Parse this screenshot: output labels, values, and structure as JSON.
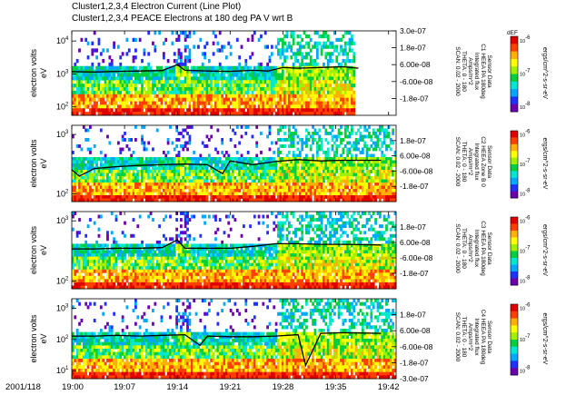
{
  "titles": {
    "line1": "Cluster1,2,3,4 Electron Current (Line Plot)",
    "line2": "Cluster1,2,3,4 PEACE Electrons at 180 deg PA V wrt B"
  },
  "time_axis": {
    "date_label": "2001/118",
    "ticks": [
      "19:00",
      "19:07",
      "19:14",
      "19:21",
      "19:28",
      "19:35",
      "19:42"
    ]
  },
  "panels": [
    {
      "ylabel": [
        "electron volts",
        "eV"
      ],
      "yticks_left": [
        {
          "v": "10",
          "e": "4"
        },
        {
          "v": "10",
          "e": "3"
        },
        {
          "v": "10",
          "e": "2"
        }
      ],
      "yticks_right": [
        "3.0e-07",
        "1.8e-07",
        "6.00e-08",
        "-6.00e-08",
        "-1.8e-07"
      ],
      "sensor_lines": [
        "Sensor Data",
        "C1 HEEA PA 180deg",
        "Integrated flux",
        "Amps/m^2",
        "THETA: 0 - 180",
        "SCAN: 0.02 - 2000"
      ],
      "colorbar_top": "dEF",
      "colorbar_ticks": [
        {
          "v": "10",
          "e": "-6"
        },
        {
          "v": "10",
          "e": "-7"
        },
        {
          "v": "10",
          "e": "-8"
        }
      ],
      "colorbar_unit": "ergs/cm^2-s-sr-eV"
    },
    {
      "ylabel": [
        "electron volts",
        "eV"
      ],
      "yticks_left": [
        {
          "v": "10",
          "e": "3"
        },
        {
          "v": "10",
          "e": "2"
        }
      ],
      "yticks_right": [
        "1.8e-07",
        "6.00e-08",
        "-6.00e-08",
        "-1.8e-07"
      ],
      "sensor_lines": [
        "Sensor Data",
        "C2 HEEA Zone B 0",
        "Integrated flux",
        "Amps/m^2",
        "THETA: 0 - 180",
        "SCAN: 0.02 - 2000"
      ],
      "colorbar_top": "",
      "colorbar_ticks": [
        {
          "v": "10",
          "e": "-6"
        },
        {
          "v": "10",
          "e": "-7"
        },
        {
          "v": "10",
          "e": "-8"
        }
      ],
      "colorbar_unit": "ergs/cm^2-s-sr-eV"
    },
    {
      "ylabel": [
        "electron volts",
        "eV"
      ],
      "yticks_left": [
        {
          "v": "10",
          "e": "3"
        },
        {
          "v": "10",
          "e": "2"
        }
      ],
      "yticks_right": [
        "1.8e-07",
        "6.00e-08",
        "-6.00e-08",
        "-1.8e-07"
      ],
      "sensor_lines": [
        "Sensor Data",
        "C3 HEEA PA 180deg",
        "Integrated flux",
        "Amps/m^2",
        "THETA: 0 - 180",
        "SCAN: 0.02 - 2000"
      ],
      "colorbar_top": "",
      "colorbar_ticks": [
        {
          "v": "10",
          "e": "-6"
        },
        {
          "v": "10",
          "e": "-7"
        },
        {
          "v": "10",
          "e": "-8"
        }
      ],
      "colorbar_unit": "ergs/cm^2-s-sr-eV"
    },
    {
      "ylabel": [
        "electron volts",
        "eV"
      ],
      "yticks_left": [
        {
          "v": "10",
          "e": "3"
        },
        {
          "v": "10",
          "e": "2"
        },
        {
          "v": "10",
          "e": "1"
        }
      ],
      "yticks_right": [
        "1.8e-07",
        "6.00e-08",
        "-6.00e-08",
        "-1.8e-07",
        "-3.0e-07"
      ],
      "sensor_lines": [
        "Sensor Data",
        "C4 HEEA PA 180deg",
        "Integrated flux",
        "Amps/m^2",
        "THETA: 0 - 180",
        "SCAN: 0.02 - 2000"
      ],
      "colorbar_top": "",
      "colorbar_ticks": [
        {
          "v": "10",
          "e": "-6"
        },
        {
          "v": "10",
          "e": "-7"
        },
        {
          "v": "10",
          "e": "-8"
        }
      ],
      "colorbar_unit": "ergs/cm^2-s-sr-eV"
    }
  ],
  "colors": {
    "colormap": [
      "#6a00b0",
      "#2030ff",
      "#00a8ff",
      "#00e8d0",
      "#00d040",
      "#a0f000",
      "#ffff00",
      "#ffb000",
      "#ff4000",
      "#e00000"
    ],
    "line": "#000000"
  },
  "chart_data": {
    "type": "heatmap",
    "title": "Cluster1,2,3,4 Electron Current (Line Plot)",
    "subtitle": "Cluster1,2,3,4 PEACE Electrons at 180 deg PA V wrt B",
    "x_start": "19:00",
    "x_end": "19:43",
    "xticks": [
      "19:00",
      "19:07",
      "19:14",
      "19:21",
      "19:28",
      "19:35",
      "19:42"
    ],
    "ylabel": "electron volts",
    "yscale": "log",
    "ylim": [
      10,
      30000
    ],
    "right_ylabel_ticks": [
      "3.0e-07",
      "1.8e-07",
      "6.00e-08",
      "-6.00e-08",
      "-1.8e-07",
      "-3.0e-07"
    ],
    "colorbar_label": "dEF",
    "colorbar_unit": "ergs/cm^2-s-sr-eV",
    "colorbar_scale": "log",
    "colorbar_range": [
      1e-08,
      1e-06
    ],
    "series": [
      {
        "time": [
          "19:00",
          "19:03",
          "19:06",
          "19:09",
          "19:12",
          "19:14",
          "19:15",
          "19:18",
          "19:21",
          "19:24",
          "19:26",
          "19:28",
          "19:30",
          "19:33",
          "19:36",
          "19:38"
        ],
        "current": [
          1e-08,
          8e-09,
          1.2e-08,
          1.5e-08,
          1.8e-08,
          6e-08,
          2e-08,
          1.5e-08,
          1.2e-08,
          2e-08,
          1.5e-08,
          4e-08,
          3.5e-08,
          4e-08,
          4.5e-08,
          3.5e-08
        ]
      },
      {
        "time": [
          "19:00",
          "19:01",
          "19:03",
          "19:06",
          "19:09",
          "19:12",
          "19:15",
          "19:18",
          "19:20",
          "19:21",
          "19:24",
          "19:27",
          "19:30",
          "19:33",
          "19:36",
          "19:41"
        ],
        "current": [
          -5e-08,
          -1e-07,
          -4e-08,
          -2.5e-08,
          -1.5e-08,
          -1e-08,
          -5e-09,
          -1e-08,
          -8e-08,
          2e-08,
          -1e-08,
          1.5e-08,
          3e-08,
          2e-08,
          2.5e-08,
          2.5e-08
        ]
      },
      {
        "time": [
          "19:00",
          "19:03",
          "19:06",
          "19:09",
          "19:12",
          "19:14",
          "19:15",
          "19:18",
          "19:21",
          "19:24",
          "19:27",
          "19:30",
          "19:33",
          "19:36",
          "19:41"
        ],
        "current": [
          1e-08,
          1e-08,
          1.5e-08,
          1.5e-08,
          2e-08,
          8e-08,
          1.5e-08,
          1.5e-08,
          1.5e-08,
          3e-08,
          5e-08,
          5e-08,
          4.5e-08,
          4.5e-08,
          4e-08
        ]
      },
      {
        "time": [
          "19:00",
          "19:03",
          "19:06",
          "19:09",
          "19:12",
          "19:15",
          "19:17",
          "19:18",
          "19:21",
          "19:24",
          "19:27",
          "19:30",
          "19:31",
          "19:33",
          "19:36",
          "19:41"
        ],
        "current": [
          2e-08,
          2e-08,
          2.5e-08,
          2e-08,
          2.5e-08,
          3e-08,
          -5e-08,
          2e-08,
          1.5e-08,
          1.5e-08,
          2e-08,
          3e-08,
          -2e-07,
          4e-08,
          4.5e-08,
          4e-08
        ]
      }
    ]
  }
}
